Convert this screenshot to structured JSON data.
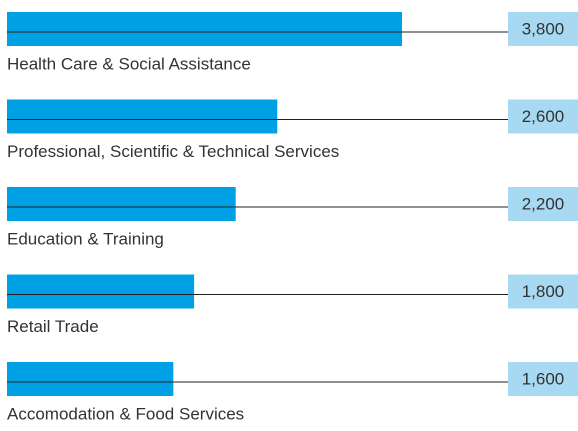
{
  "chart_data": {
    "type": "bar",
    "orientation": "horizontal",
    "categories": [
      "Health Care & Social Assistance",
      "Professional, Scientific & Technical Services",
      "Education & Training",
      "Retail Trade",
      "Accomodation & Food Services"
    ],
    "values": [
      3800,
      2600,
      2200,
      1800,
      1600
    ],
    "value_labels": [
      "3,800",
      "2,600",
      "2,200",
      "1,800",
      "1,600"
    ],
    "color": "#00a1e4",
    "label_box_color": "#a7d9f2"
  }
}
